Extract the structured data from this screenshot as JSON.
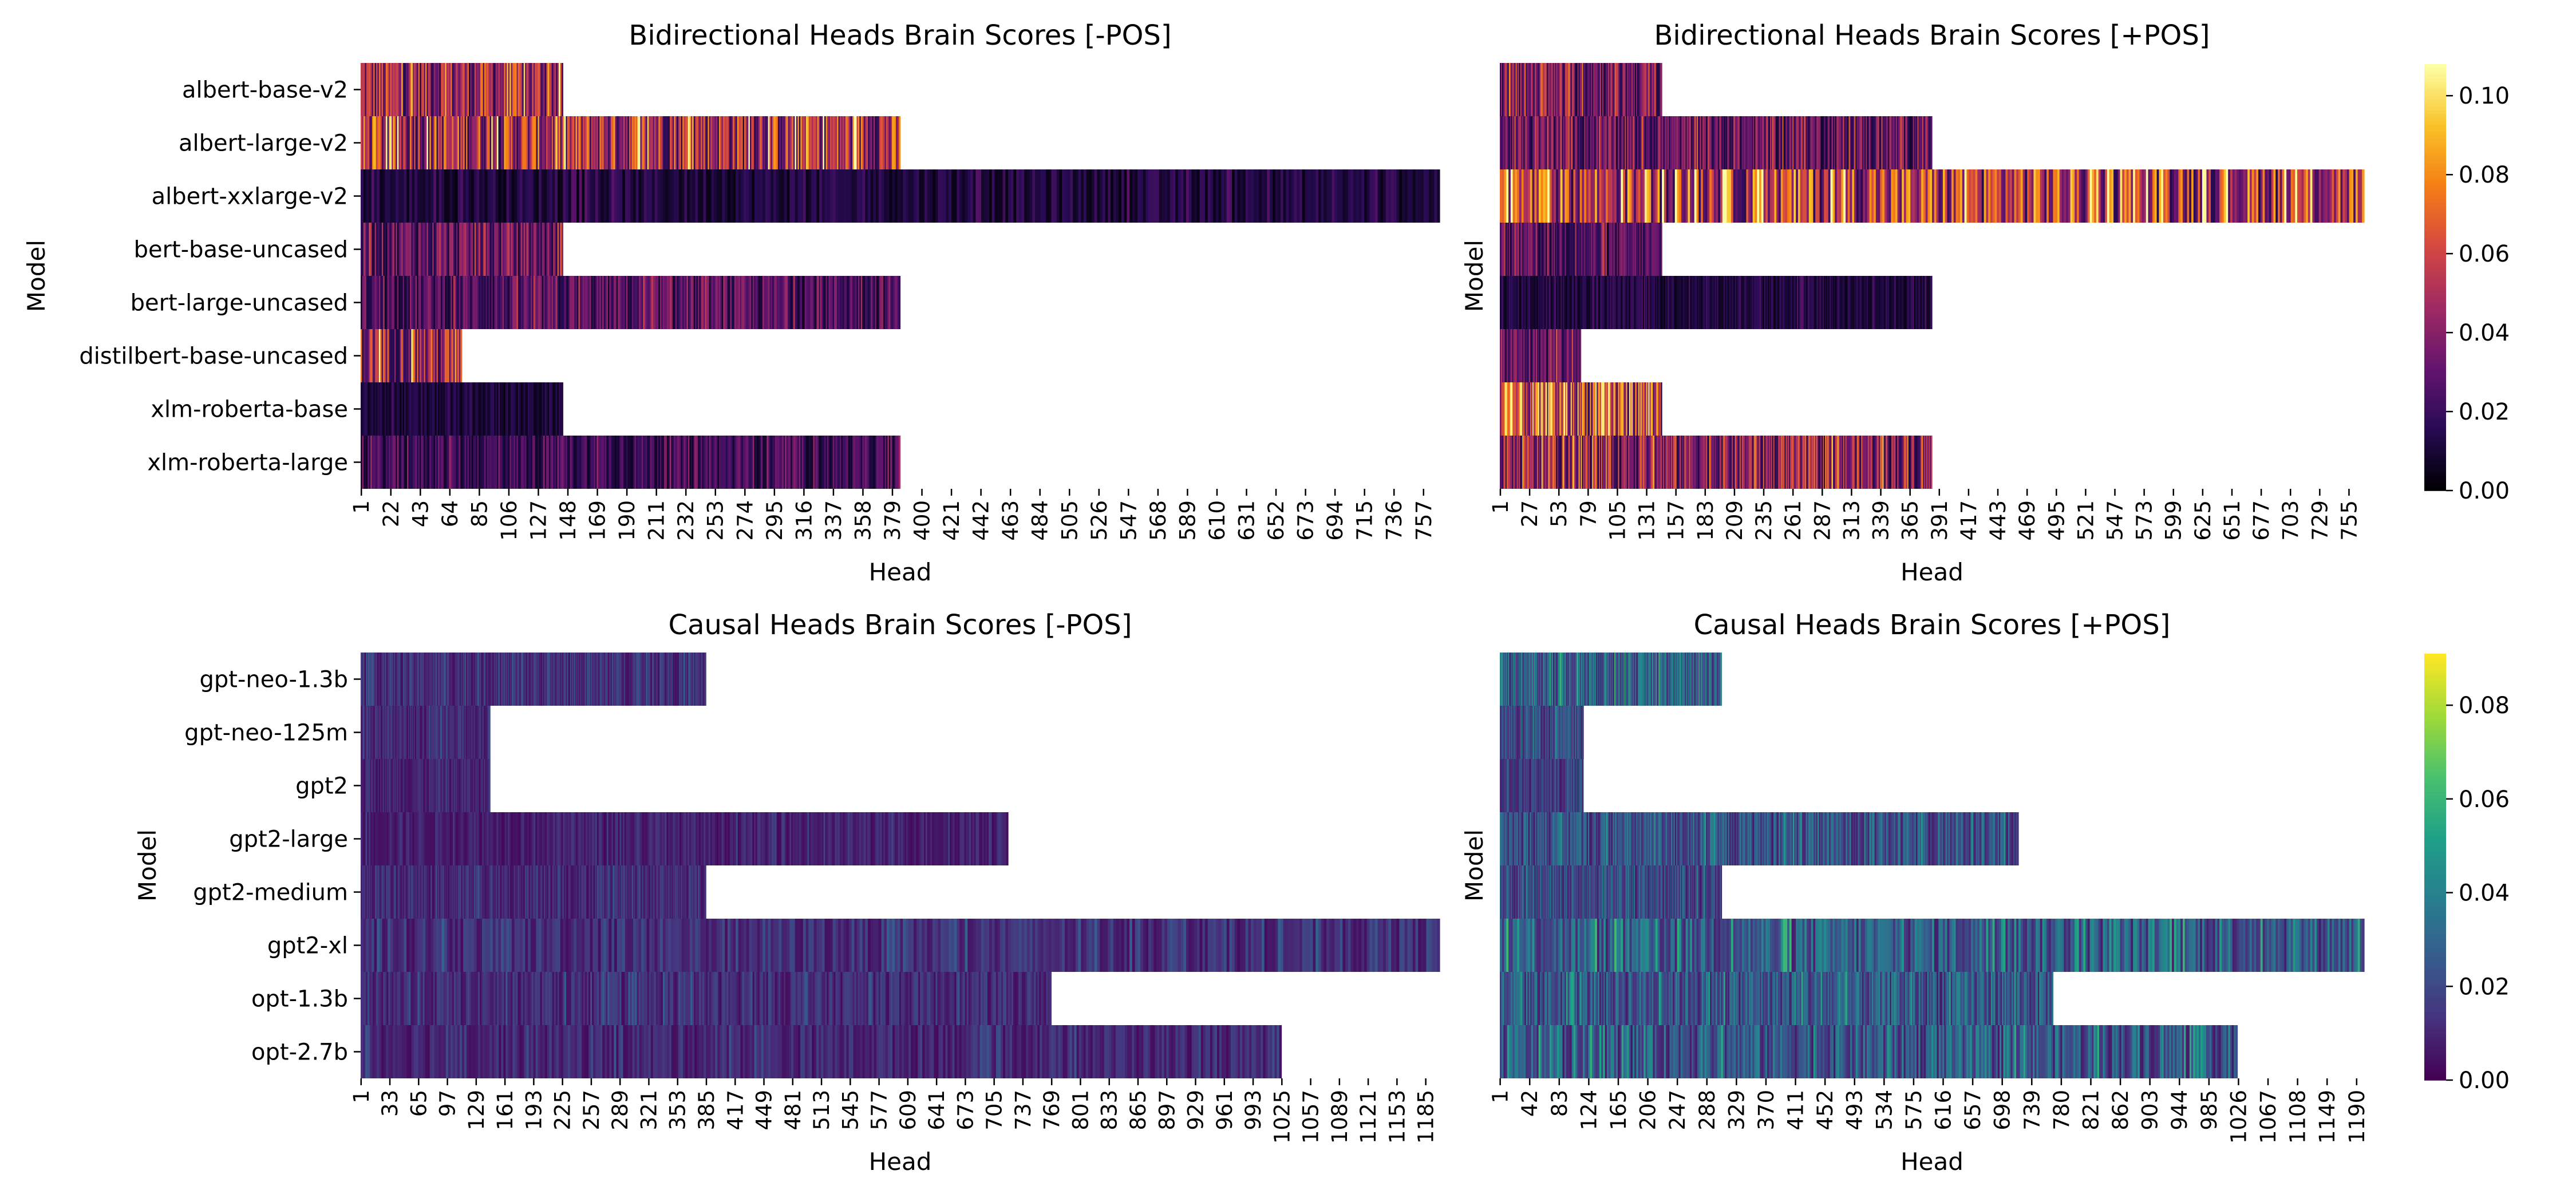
{
  "chart_data": [
    {
      "id": "bi_nopos",
      "type": "heatmap",
      "title": "Bidirectional Heads Brain Scores [-POS]",
      "xlabel": "Head",
      "ylabel": "Model",
      "colormap": "inferno",
      "rows": [
        {
          "model": "albert-base-v2",
          "heads": 144
        },
        {
          "model": "albert-large-v2",
          "heads": 384
        },
        {
          "model": "albert-xxlarge-v2",
          "heads": 768
        },
        {
          "model": "bert-base-uncased",
          "heads": 144
        },
        {
          "model": "bert-large-uncased",
          "heads": 384
        },
        {
          "model": "distilbert-base-uncased",
          "heads": 72
        },
        {
          "model": "xlm-roberta-base",
          "heads": 144
        },
        {
          "model": "xlm-roberta-large",
          "heads": 384
        }
      ],
      "row_mean_scores": [
        0.045,
        0.05,
        0.012,
        0.03,
        0.025,
        0.045,
        0.01,
        0.02
      ],
      "x_max_heads": 768,
      "x_ticks": [
        "1",
        "22",
        "43",
        "64",
        "85",
        "106",
        "127",
        "148",
        "169",
        "190",
        "211",
        "232",
        "253",
        "274",
        "295",
        "316",
        "337",
        "358",
        "379",
        "400",
        "421",
        "442",
        "463",
        "484",
        "505",
        "526",
        "547",
        "568",
        "589",
        "610",
        "631",
        "652",
        "673",
        "694",
        "715",
        "736",
        "757"
      ],
      "show_ylabels": true,
      "show_ylabel_title": true
    },
    {
      "id": "bi_pos",
      "type": "heatmap",
      "title": "Bidirectional Heads Brain Scores [+POS]",
      "xlabel": "Head",
      "ylabel": "Model",
      "colormap": "inferno",
      "rows": [
        {
          "model": "albert-base-v2",
          "heads": 144
        },
        {
          "model": "albert-large-v2",
          "heads": 384
        },
        {
          "model": "albert-xxlarge-v2",
          "heads": 768
        },
        {
          "model": "bert-base-uncased",
          "heads": 144
        },
        {
          "model": "bert-large-uncased",
          "heads": 384
        },
        {
          "model": "distilbert-base-uncased",
          "heads": 72
        },
        {
          "model": "xlm-roberta-base",
          "heads": 144
        },
        {
          "model": "xlm-roberta-large",
          "heads": 384
        }
      ],
      "row_mean_scores": [
        0.035,
        0.03,
        0.055,
        0.025,
        0.012,
        0.03,
        0.06,
        0.04
      ],
      "x_max_heads": 768,
      "x_ticks": [
        "1",
        "27",
        "53",
        "79",
        "105",
        "131",
        "157",
        "183",
        "209",
        "235",
        "261",
        "287",
        "313",
        "339",
        "365",
        "391",
        "417",
        "443",
        "469",
        "495",
        "521",
        "547",
        "573",
        "599",
        "625",
        "651",
        "677",
        "703",
        "729",
        "755"
      ],
      "show_ylabels": false,
      "show_ylabel_title": true
    },
    {
      "id": "causal_nopos",
      "type": "heatmap",
      "title": "Causal Heads Brain Scores [-POS]",
      "xlabel": "Head",
      "ylabel": "Model",
      "colormap": "viridis",
      "rows": [
        {
          "model": "gpt-neo-1.3b",
          "heads": 384
        },
        {
          "model": "gpt-neo-125m",
          "heads": 144
        },
        {
          "model": "gpt2",
          "heads": 144
        },
        {
          "model": "gpt2-large",
          "heads": 720
        },
        {
          "model": "gpt2-medium",
          "heads": 384
        },
        {
          "model": "gpt2-xl",
          "heads": 1200
        },
        {
          "model": "opt-1.3b",
          "heads": 768
        },
        {
          "model": "opt-2.7b",
          "heads": 1024
        }
      ],
      "row_mean_scores": [
        0.012,
        0.01,
        0.009,
        0.008,
        0.01,
        0.012,
        0.011,
        0.01
      ],
      "x_max_heads": 1200,
      "x_ticks": [
        "1",
        "33",
        "65",
        "97",
        "129",
        "161",
        "193",
        "225",
        "257",
        "289",
        "321",
        "353",
        "385",
        "417",
        "449",
        "481",
        "513",
        "545",
        "577",
        "609",
        "641",
        "673",
        "705",
        "737",
        "769",
        "801",
        "833",
        "865",
        "897",
        "929",
        "961",
        "993",
        "1025",
        "1057",
        "1089",
        "1121",
        "1153",
        "1185"
      ],
      "show_ylabels": true,
      "show_ylabel_title": true
    },
    {
      "id": "causal_pos",
      "type": "heatmap",
      "title": "Causal Heads Brain Scores [+POS]",
      "xlabel": "Head",
      "ylabel": "Model",
      "colormap": "viridis",
      "rows": [
        {
          "model": "gpt-neo-1.3b",
          "heads": 308
        },
        {
          "model": "gpt-neo-125m",
          "heads": 116
        },
        {
          "model": "gpt2",
          "heads": 116
        },
        {
          "model": "gpt2-large",
          "heads": 720
        },
        {
          "model": "gpt2-medium",
          "heads": 308
        },
        {
          "model": "gpt2-xl",
          "heads": 1200
        },
        {
          "model": "opt-1.3b",
          "heads": 768
        },
        {
          "model": "opt-2.7b",
          "heads": 1024
        }
      ],
      "row_mean_scores": [
        0.028,
        0.02,
        0.015,
        0.022,
        0.02,
        0.026,
        0.024,
        0.024
      ],
      "x_max_heads": 1200,
      "x_ticks": [
        "1",
        "42",
        "83",
        "124",
        "165",
        "206",
        "247",
        "288",
        "329",
        "370",
        "411",
        "452",
        "493",
        "534",
        "575",
        "616",
        "657",
        "698",
        "739",
        "780",
        "821",
        "862",
        "903",
        "944",
        "985",
        "1026",
        "1067",
        "1108",
        "1149",
        "1190"
      ],
      "show_ylabels": false,
      "show_ylabel_title": true
    }
  ],
  "colorbars": [
    {
      "id": "cb_inferno",
      "colormap": "inferno",
      "min": 0.0,
      "max": 0.108,
      "ticks": [
        "0.00",
        "0.02",
        "0.04",
        "0.06",
        "0.08",
        "0.10"
      ],
      "tick_values": [
        0.0,
        0.02,
        0.04,
        0.06,
        0.08,
        0.1
      ]
    },
    {
      "id": "cb_viridis",
      "colormap": "viridis",
      "min": 0.0,
      "max": 0.091,
      "ticks": [
        "0.00",
        "0.02",
        "0.04",
        "0.06",
        "0.08"
      ],
      "tick_values": [
        0.0,
        0.02,
        0.04,
        0.06,
        0.08
      ]
    }
  ]
}
